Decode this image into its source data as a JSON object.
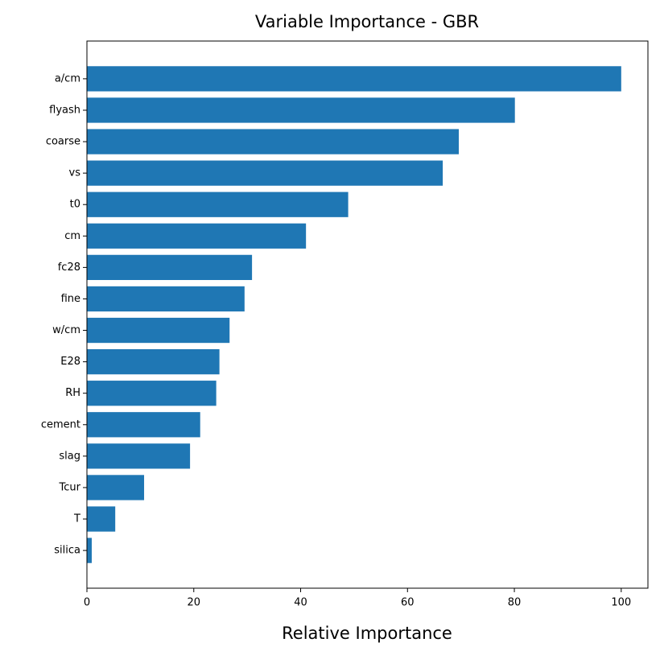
{
  "chart_data": {
    "type": "barh",
    "title": "Variable Importance - GBR",
    "xlabel": "Relative Importance",
    "categories": [
      "a/cm",
      "flyash",
      "coarse",
      "vs",
      "t0",
      "cm",
      "fc28",
      "fine",
      "w/cm",
      "E28",
      "RH",
      "cement",
      "slag",
      "Tcur",
      "T",
      "silica"
    ],
    "values": [
      100,
      80.1,
      69.6,
      66.6,
      48.9,
      41.0,
      30.9,
      29.5,
      26.7,
      24.8,
      24.2,
      21.2,
      19.3,
      10.7,
      5.3,
      0.9
    ],
    "color": "#1f77b4",
    "xlim": [
      0,
      105
    ],
    "xticks": [
      0,
      20,
      40,
      60,
      80,
      100
    ],
    "grid": false
  }
}
